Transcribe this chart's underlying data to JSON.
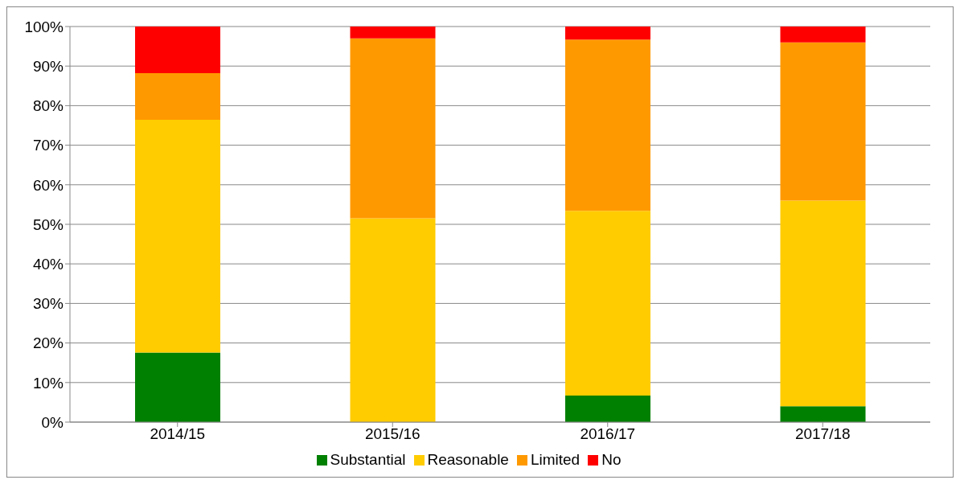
{
  "chart_data": {
    "type": "bar",
    "stacked": true,
    "categories": [
      "2014/15",
      "2015/16",
      "2016/17",
      "2017/18"
    ],
    "series": [
      {
        "name": "Substantial",
        "color": "#008000",
        "values": [
          17.6,
          0,
          6.7,
          4
        ]
      },
      {
        "name": "Reasonable",
        "color": "#ffcc00",
        "values": [
          58.8,
          51.5,
          46.7,
          52
        ]
      },
      {
        "name": "Limited",
        "color": "#ff9900",
        "values": [
          11.8,
          45.5,
          43.3,
          40
        ]
      },
      {
        "name": "No",
        "color": "#ff0000",
        "values": [
          11.8,
          3,
          3.3,
          4
        ]
      }
    ],
    "ylim": [
      0,
      100
    ],
    "yticks": [
      {
        "value": 0,
        "label": "0%"
      },
      {
        "value": 10,
        "label": "10%"
      },
      {
        "value": 20,
        "label": "20%"
      },
      {
        "value": 30,
        "label": "30%"
      },
      {
        "value": 40,
        "label": "40%"
      },
      {
        "value": 50,
        "label": "50%"
      },
      {
        "value": 60,
        "label": "60%"
      },
      {
        "value": 70,
        "label": "70%"
      },
      {
        "value": 80,
        "label": "80%"
      },
      {
        "value": 90,
        "label": "90%"
      },
      {
        "value": 100,
        "label": "100%"
      }
    ],
    "grid": "y",
    "legend": "bottom"
  }
}
